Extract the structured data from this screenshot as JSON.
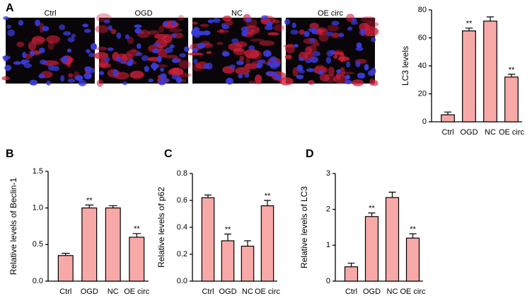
{
  "panel_labels": [
    "A",
    "B",
    "C",
    "D"
  ],
  "image_labels": [
    "Ctrl",
    "OGD",
    "NC",
    "OE circ"
  ],
  "chart_data": [
    {
      "type": "bar",
      "y_label": "LC3 levels",
      "categories": [
        "Ctrl",
        "OGD",
        "NC",
        "OE circ"
      ],
      "values": [
        5,
        65,
        72,
        32
      ],
      "errors": [
        2,
        2,
        3,
        2
      ],
      "annotations": [
        null,
        "**",
        null,
        "**"
      ],
      "color": "#f7a9a8",
      "ylim": [
        0,
        80
      ],
      "yticks": [
        0,
        20,
        40,
        60,
        80
      ]
    },
    {
      "type": "bar",
      "y_label": "Relative levels of Beclin-1",
      "categories": [
        "Ctrl",
        "OGD",
        "NC",
        "OE circ"
      ],
      "values": [
        0.35,
        1.0,
        1.0,
        0.6
      ],
      "errors": [
        0.03,
        0.04,
        0.03,
        0.05
      ],
      "annotations": [
        null,
        "**",
        null,
        "**"
      ],
      "color": "#f7a9a8",
      "ylim": [
        0,
        1.5
      ],
      "yticks": [
        {
          "value": 0,
          "label": "0.0"
        },
        0.5,
        {
          "value": 1,
          "label": "1.0"
        },
        1.5
      ]
    },
    {
      "type": "bar",
      "y_label": "Relative levels of p62",
      "categories": [
        "Ctrl",
        "OGD",
        "NC",
        "OE circ"
      ],
      "values": [
        0.62,
        0.3,
        0.26,
        0.56
      ],
      "errors": [
        0.02,
        0.05,
        0.04,
        0.04
      ],
      "annotations": [
        null,
        "**",
        null,
        "**"
      ],
      "color": "#f7a9a8",
      "ylim": [
        0,
        0.8
      ],
      "yticks": [
        {
          "value": 0,
          "label": "0.0"
        },
        0.2,
        0.4,
        0.6,
        0.8
      ]
    },
    {
      "type": "bar",
      "y_label": "Relative levels of LC3",
      "categories": [
        "Ctrl",
        "OGD",
        "NC",
        "OE circ"
      ],
      "values": [
        0.4,
        1.8,
        2.33,
        1.2
      ],
      "errors": [
        0.1,
        0.1,
        0.15,
        0.12
      ],
      "annotations": [
        null,
        "**",
        null,
        "**"
      ],
      "color": "#f7a9a8",
      "ylim": [
        0,
        3
      ],
      "yticks": [
        0,
        1,
        2,
        3
      ]
    }
  ]
}
